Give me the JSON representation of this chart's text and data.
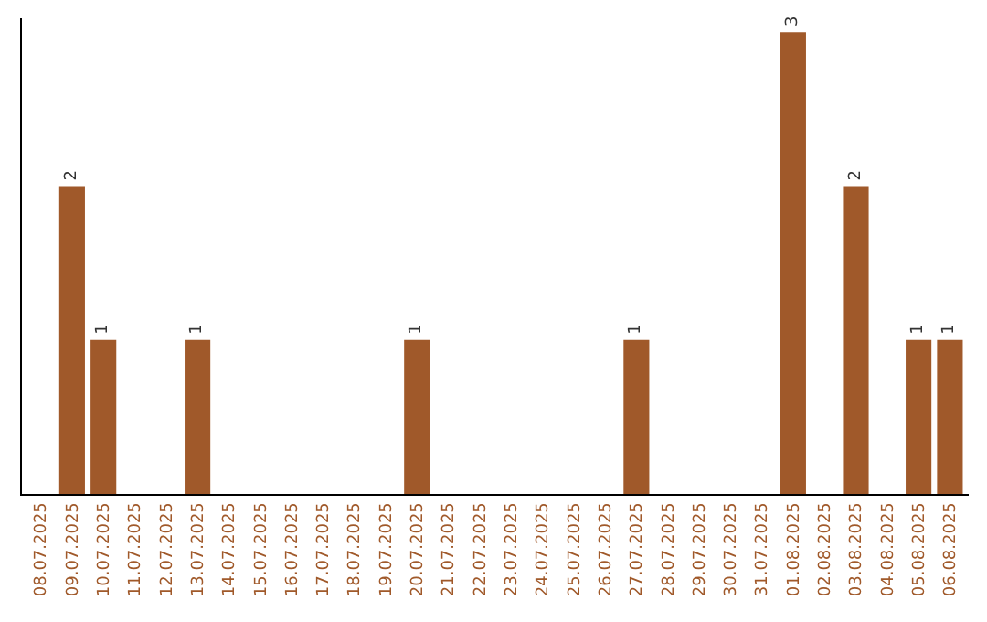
{
  "chart_data": {
    "type": "bar",
    "categories": [
      "08.07.2025",
      "09.07.2025",
      "10.07.2025",
      "11.07.2025",
      "12.07.2025",
      "13.07.2025",
      "14.07.2025",
      "15.07.2025",
      "16.07.2025",
      "17.07.2025",
      "18.07.2025",
      "19.07.2025",
      "20.07.2025",
      "21.07.2025",
      "22.07.2025",
      "23.07.2025",
      "24.07.2025",
      "25.07.2025",
      "26.07.2025",
      "27.07.2025",
      "28.07.2025",
      "29.07.2025",
      "30.07.2025",
      "31.07.2025",
      "01.08.2025",
      "02.08.2025",
      "03.08.2025",
      "04.08.2025",
      "05.08.2025",
      "06.08.2025"
    ],
    "values": [
      0,
      2,
      1,
      0,
      0,
      1,
      0,
      0,
      0,
      0,
      0,
      0,
      1,
      0,
      0,
      0,
      0,
      0,
      0,
      1,
      0,
      0,
      0,
      0,
      3,
      0,
      2,
      0,
      1,
      1
    ],
    "value_labels": [
      null,
      "2",
      "1",
      null,
      null,
      "1",
      null,
      null,
      null,
      null,
      null,
      null,
      "1",
      null,
      null,
      null,
      null,
      null,
      null,
      "1",
      null,
      null,
      null,
      null,
      "3",
      null,
      "2",
      null,
      "1",
      "1"
    ],
    "color": "#a0592a",
    "tick_labels": "x"
  }
}
